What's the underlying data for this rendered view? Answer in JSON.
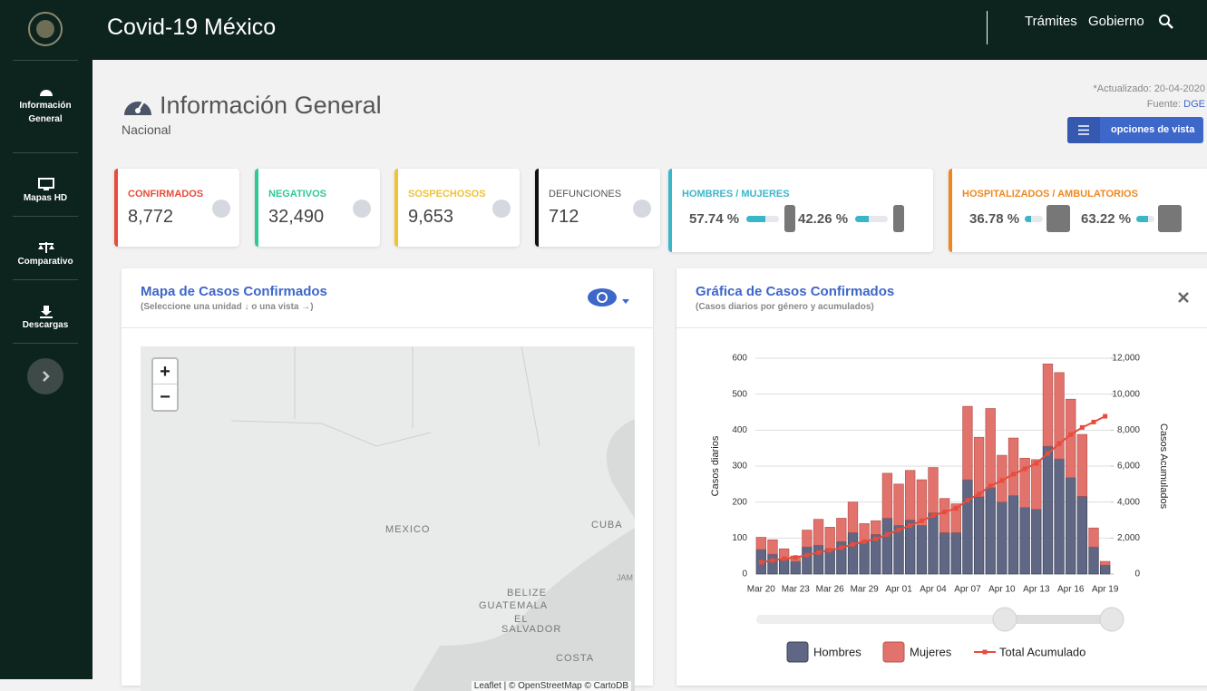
{
  "header": {
    "title": "Covid-19 México",
    "links": [
      "Trámites",
      "Gobierno"
    ]
  },
  "sidebar": [
    "Información General",
    "Mapas HD",
    "Comparativo",
    "Descargas"
  ],
  "page": {
    "title": "Información General",
    "subtitle": "Nacional",
    "updated": "*Actualizado: 20-04-2020",
    "source_label": "Fuente:",
    "source": "DGE",
    "button": "opciones de vista"
  },
  "stats": [
    {
      "label": "CONFIRMADOS",
      "value": "8,772"
    },
    {
      "label": "NEGATIVOS",
      "value": "32,490"
    },
    {
      "label": "SOSPECHOSOS",
      "value": "9,653"
    },
    {
      "label": "DEFUNCIONES",
      "value": "712"
    }
  ],
  "ratios": [
    {
      "label": "HOMBRES / MUJERES",
      "parts": [
        {
          "value": 57.74,
          "label": "57.74 %"
        },
        {
          "value": 42.26,
          "label": "42.26 %"
        }
      ]
    },
    {
      "label": "HOSPITALIZADOS / AMBULATORIOS",
      "parts": [
        {
          "value": 36.78,
          "label": "36.78 %"
        },
        {
          "value": 63.22,
          "label": "63.22 %"
        }
      ]
    }
  ],
  "map": {
    "title": "Mapa de Casos Confirmados",
    "subtitle": "(Seleccione una unidad ↓ o una vista →)",
    "zoom": [
      "+",
      "−"
    ],
    "labels": [
      "MEXICO",
      "CUBA",
      "BELIZE",
      "GUATEMALA",
      "EL",
      "SALVADOR",
      "COSTA",
      "JAM"
    ],
    "attribution": "Leaflet | © OpenStreetMap © CartoDB"
  },
  "chart_data": {
    "type": "bar",
    "title": "Gráfica de Casos Confirmados",
    "subtitle": "(Casos diarios por género y acumulados)",
    "categories": [
      "Mar 20",
      null,
      null,
      "Mar 23",
      null,
      null,
      "Mar 26",
      null,
      null,
      "Mar 29",
      null,
      null,
      "Apr 01",
      null,
      null,
      "Apr 04",
      null,
      null,
      "Apr 07",
      null,
      null,
      "Apr 10",
      null,
      null,
      "Apr 13",
      null,
      null,
      "Apr 16",
      null,
      null,
      "Apr 19"
    ],
    "series": [
      {
        "name": "Hombres",
        "color": "#5f6784",
        "values": [
          68,
          55,
          40,
          35,
          75,
          80,
          70,
          90,
          115,
          90,
          110,
          155,
          135,
          150,
          135,
          170,
          115,
          115,
          262,
          215,
          240,
          200,
          218,
          185,
          180,
          355,
          320,
          268,
          216,
          75,
          25
        ]
      },
      {
        "name": "Mujeres",
        "color": "#e2726c",
        "values": [
          34,
          40,
          30,
          15,
          47,
          72,
          60,
          65,
          85,
          50,
          38,
          125,
          115,
          138,
          127,
          126,
          95,
          80,
          204,
          165,
          220,
          130,
          160,
          137,
          138,
          229,
          240,
          218,
          172,
          53,
          10
        ]
      },
      {
        "name": "Total Acumulado",
        "color": "#e74c3c",
        "axis": "y2",
        "values": [
          650,
          760,
          850,
          920,
          1050,
          1200,
          1320,
          1460,
          1650,
          1800,
          1950,
          2200,
          2450,
          2700,
          2960,
          3250,
          3450,
          3650,
          4100,
          4450,
          4900,
          5200,
          5550,
          5850,
          6150,
          6700,
          7250,
          7750,
          8150,
          8450,
          8772
        ]
      }
    ],
    "stacked": true,
    "ylabel": "Casos diarios",
    "y2label": "Casos Acumulados",
    "ylim": [
      0,
      600
    ],
    "yticks": [
      0,
      100,
      200,
      300,
      400,
      500,
      600
    ],
    "y2lim": [
      0,
      12000
    ],
    "y2ticks": [
      0,
      {
        "value": 2000,
        "label": "2,000"
      },
      {
        "value": 4000,
        "label": "4,000"
      },
      {
        "value": 6000,
        "label": "6,000"
      },
      {
        "value": 8000,
        "label": "8,000"
      },
      {
        "value": 10000,
        "label": "10,000"
      },
      {
        "value": 12000,
        "label": "12,000"
      }
    ],
    "grid": true
  }
}
